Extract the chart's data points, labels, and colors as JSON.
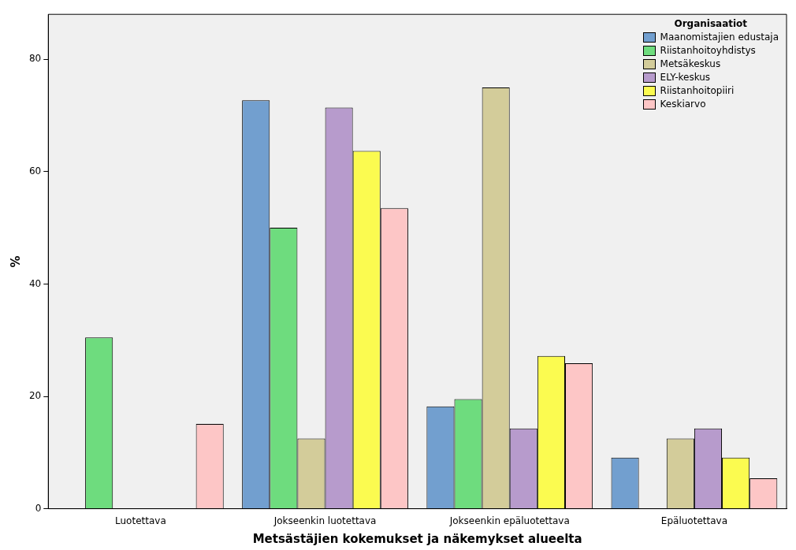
{
  "chart_data": {
    "type": "bar",
    "xlabel": "Metsästäjien kokemukset ja näkemykset alueelta",
    "ylabel": "%",
    "legend_title": "Organisaatiot",
    "legend": "top right",
    "grid": false,
    "categories": [
      "Luotettava",
      "Jokseenkin luotettava",
      "Jokseenkin epäluotettava",
      "Epäluotettava"
    ],
    "ylim": [
      0,
      88
    ],
    "yticks": [
      0,
      20,
      40,
      60,
      80
    ],
    "series": [
      {
        "name": "Maanomistajien edustaja",
        "color": "#729fcf",
        "values": [
          0,
          72.7,
          18.2,
          9.1
        ]
      },
      {
        "name": "Riistanhoitoyhdistys",
        "color": "#6edc7e",
        "values": [
          30.5,
          50,
          19.5,
          0
        ]
      },
      {
        "name": "Metsäkeskus",
        "color": "#d3cc9a",
        "values": [
          0,
          12.5,
          75,
          12.5
        ]
      },
      {
        "name": "ELY-keskus",
        "color": "#b79bcc",
        "values": [
          0,
          71.4,
          14.3,
          14.3
        ]
      },
      {
        "name": "Riistanhoitopiiri",
        "color": "#fbfb50",
        "values": [
          0,
          63.7,
          27.2,
          9.1
        ]
      },
      {
        "name": "Keskiarvo",
        "color": "#fdc6c6",
        "values": [
          15.1,
          53.5,
          25.9,
          5.4
        ]
      }
    ]
  }
}
